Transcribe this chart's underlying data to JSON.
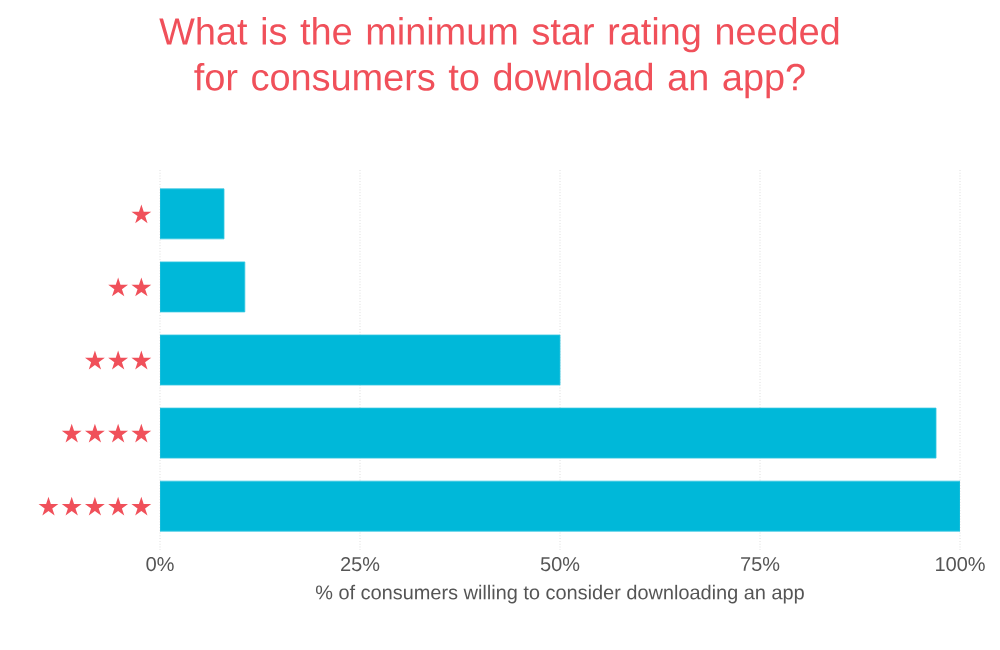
{
  "chart_data": {
    "type": "bar",
    "orientation": "horizontal",
    "title": "What is the minimum star rating needed for consumers to download an app?",
    "xlabel": "% of consumers willing to consider downloading an app",
    "categories": [
      "★",
      "★★",
      "★★★",
      "★★★★",
      "★★★★★"
    ],
    "values": [
      8,
      10.6,
      50,
      97,
      100
    ],
    "color": "#00b8d9",
    "xlim": [
      0,
      100
    ],
    "xticks": [
      {
        "value": 0,
        "label": "0%"
      },
      {
        "value": 25,
        "label": "25%"
      },
      {
        "value": 50,
        "label": "50%"
      },
      {
        "value": 75,
        "label": "75%"
      },
      {
        "value": 100,
        "label": "100%"
      }
    ],
    "grid": "x"
  }
}
